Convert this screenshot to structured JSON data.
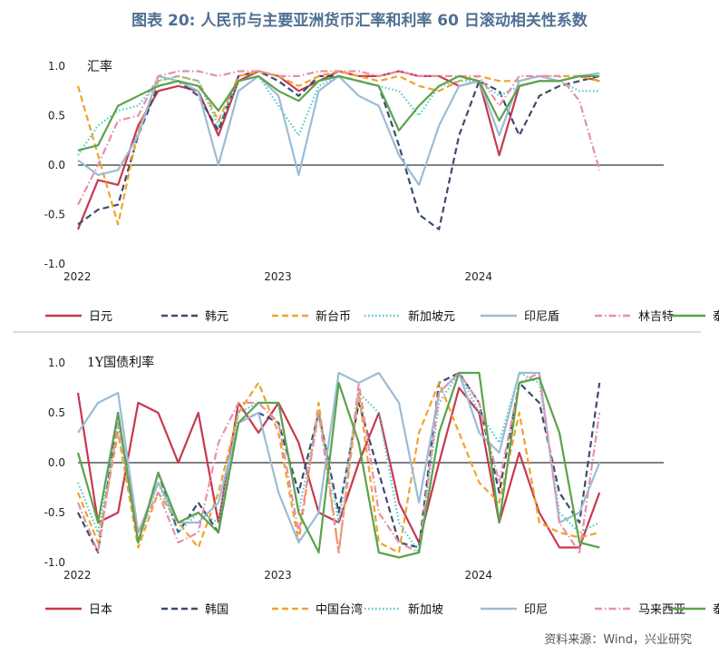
{
  "figure_title": "图表 20: 人民币与主要亚洲货币汇率和利率 60 日滚动相关性系数",
  "source": "资料来源：Wind，兴业研究",
  "chart_data": [
    {
      "type": "line",
      "title": "汇率",
      "x_ticks": [
        "2022",
        "2023",
        "2024"
      ],
      "x_range": [
        "2022-01",
        "2024-12"
      ],
      "ylim": [
        -1.0,
        1.0
      ],
      "y_ticks": [
        "1.0",
        "0.5",
        "0.0",
        "-0.5",
        "-1.0"
      ],
      "x": [
        2022.0,
        2022.1,
        2022.2,
        2022.3,
        2022.4,
        2022.5,
        2022.6,
        2022.7,
        2022.8,
        2022.9,
        2023.0,
        2023.1,
        2023.2,
        2023.3,
        2023.4,
        2023.5,
        2023.6,
        2023.7,
        2023.8,
        2023.9,
        2024.0,
        2024.1,
        2024.2,
        2024.3,
        2024.4,
        2024.5,
        2024.6
      ],
      "series": [
        {
          "name": "日元",
          "color": "#c8384e",
          "dash": "solid",
          "values": [
            -0.65,
            -0.15,
            -0.2,
            0.4,
            0.75,
            0.8,
            0.75,
            0.3,
            0.85,
            0.95,
            0.9,
            0.75,
            0.85,
            0.95,
            0.9,
            0.9,
            0.95,
            0.9,
            0.9,
            0.8,
            0.85,
            0.1,
            0.8,
            0.85,
            0.85,
            0.9,
            0.85
          ]
        },
        {
          "name": "韩元",
          "color": "#3d4c6e",
          "dash": "dashed",
          "values": [
            -0.6,
            -0.45,
            -0.4,
            0.3,
            0.8,
            0.85,
            0.7,
            0.35,
            0.9,
            0.95,
            0.85,
            0.7,
            0.9,
            0.9,
            0.85,
            0.8,
            0.2,
            -0.5,
            -0.65,
            0.3,
            0.85,
            0.75,
            0.3,
            0.7,
            0.8,
            0.85,
            0.9
          ]
        },
        {
          "name": "新台币",
          "color": "#f0a32a",
          "dash": "dashed",
          "values": [
            0.8,
            0.1,
            -0.6,
            0.35,
            0.85,
            0.9,
            0.85,
            0.45,
            0.9,
            0.95,
            0.9,
            0.8,
            0.9,
            0.95,
            0.9,
            0.85,
            0.9,
            0.8,
            0.75,
            0.85,
            0.9,
            0.85,
            0.85,
            0.9,
            0.9,
            0.9,
            0.85
          ]
        },
        {
          "name": "新加坡元",
          "color": "#4ec9c9",
          "dash": "dotted",
          "values": [
            0.1,
            0.4,
            0.55,
            0.6,
            0.85,
            0.9,
            0.85,
            0.4,
            0.85,
            0.9,
            0.6,
            0.3,
            0.8,
            0.9,
            0.85,
            0.8,
            0.75,
            0.5,
            0.8,
            0.85,
            0.85,
            0.7,
            0.8,
            0.85,
            0.85,
            0.75,
            0.75
          ]
        },
        {
          "name": "印尼盾",
          "color": "#9bbcd6",
          "dash": "solid",
          "values": [
            0.05,
            -0.1,
            -0.05,
            0.3,
            0.9,
            0.85,
            0.75,
            0.0,
            0.75,
            0.9,
            0.7,
            -0.1,
            0.75,
            0.9,
            0.7,
            0.6,
            0.1,
            -0.2,
            0.4,
            0.8,
            0.85,
            0.3,
            0.85,
            0.9,
            0.85,
            0.9,
            0.93
          ]
        },
        {
          "name": "林吉特",
          "color": "#e88fa8",
          "dash": "dashdot",
          "values": [
            -0.4,
            0.0,
            0.45,
            0.5,
            0.9,
            0.95,
            0.95,
            0.9,
            0.95,
            0.95,
            0.9,
            0.9,
            0.95,
            0.95,
            0.95,
            0.9,
            0.95,
            0.9,
            0.9,
            0.9,
            0.9,
            0.6,
            0.9,
            0.9,
            0.9,
            0.65,
            -0.05
          ]
        },
        {
          "name": "泰铢",
          "color": "#5aa34a",
          "dash": "solid",
          "values": [
            0.15,
            0.2,
            0.6,
            0.7,
            0.8,
            0.85,
            0.8,
            0.55,
            0.85,
            0.9,
            0.75,
            0.65,
            0.85,
            0.9,
            0.85,
            0.8,
            0.35,
            0.6,
            0.8,
            0.9,
            0.85,
            0.45,
            0.8,
            0.85,
            0.85,
            0.9,
            0.9
          ]
        }
      ]
    },
    {
      "type": "line",
      "title": "1Y国债利率",
      "x_ticks": [
        "2022",
        "2023",
        "2024"
      ],
      "x_range": [
        "2022-01",
        "2024-12"
      ],
      "ylim": [
        -1.0,
        1.0
      ],
      "y_ticks": [
        "1.0",
        "0.5",
        "0.0",
        "-0.5",
        "-1.0"
      ],
      "x": [
        2022.0,
        2022.1,
        2022.2,
        2022.3,
        2022.4,
        2022.5,
        2022.6,
        2022.7,
        2022.8,
        2022.9,
        2023.0,
        2023.1,
        2023.2,
        2023.3,
        2023.4,
        2023.5,
        2023.6,
        2023.7,
        2023.8,
        2023.9,
        2024.0,
        2024.1,
        2024.2,
        2024.3,
        2024.4,
        2024.5,
        2024.6
      ],
      "series": [
        {
          "name": "日本",
          "color": "#c8384e",
          "dash": "solid",
          "values": [
            0.7,
            -0.6,
            -0.5,
            0.6,
            0.5,
            0.0,
            0.5,
            -0.6,
            0.6,
            0.3,
            0.6,
            0.2,
            -0.5,
            -0.6,
            0.0,
            0.5,
            -0.4,
            -0.8,
            0.0,
            0.75,
            0.5,
            -0.6,
            0.1,
            -0.5,
            -0.85,
            -0.85,
            -0.3
          ]
        },
        {
          "name": "韩国",
          "color": "#3d4c6e",
          "dash": "dashed",
          "values": [
            -0.5,
            -0.9,
            0.5,
            -0.8,
            -0.1,
            -0.7,
            -0.4,
            -0.7,
            0.4,
            0.5,
            0.4,
            -0.3,
            0.5,
            -0.5,
            0.6,
            -0.1,
            -0.8,
            -0.85,
            0.8,
            0.9,
            0.6,
            -0.3,
            0.8,
            0.6,
            -0.3,
            -0.6,
            0.8
          ]
        },
        {
          "name": "中国台湾",
          "color": "#f0a32a",
          "dash": "dashed",
          "values": [
            -0.3,
            -0.8,
            0.3,
            -0.85,
            -0.3,
            -0.6,
            -0.85,
            -0.3,
            0.5,
            0.8,
            0.3,
            -0.8,
            0.6,
            -0.9,
            0.7,
            -0.8,
            -0.9,
            0.3,
            0.8,
            0.3,
            -0.2,
            -0.4,
            0.5,
            -0.6,
            -0.7,
            -0.75,
            -0.7
          ]
        },
        {
          "name": "新加坡",
          "color": "#4ec9c9",
          "dash": "dotted",
          "values": [
            -0.2,
            -0.7,
            0.4,
            -0.8,
            -0.2,
            -0.7,
            -0.5,
            -0.6,
            0.5,
            0.6,
            0.6,
            -0.5,
            0.5,
            -0.6,
            0.7,
            0.5,
            -0.6,
            -0.9,
            0.6,
            0.9,
            0.5,
            0.2,
            0.9,
            0.8,
            -0.5,
            -0.7,
            -0.6
          ]
        },
        {
          "name": "印尼",
          "color": "#9bbcd6",
          "dash": "solid",
          "values": [
            0.3,
            0.6,
            0.7,
            -0.7,
            -0.2,
            -0.6,
            -0.6,
            -0.4,
            0.4,
            0.5,
            -0.3,
            -0.8,
            -0.5,
            0.9,
            0.8,
            0.9,
            0.6,
            -0.4,
            0.7,
            0.9,
            0.3,
            0.1,
            0.9,
            0.9,
            -0.6,
            -0.5,
            0.0
          ]
        },
        {
          "name": "马来西亚",
          "color": "#e88fa8",
          "dash": "dashdot",
          "values": [
            -0.4,
            -0.9,
            0.4,
            -0.7,
            -0.3,
            -0.8,
            -0.7,
            0.2,
            0.6,
            0.6,
            0.4,
            -0.7,
            0.5,
            -0.9,
            0.8,
            -0.5,
            -0.8,
            -0.9,
            0.7,
            0.9,
            0.6,
            -0.2,
            0.8,
            0.9,
            -0.6,
            -0.9,
            0.5
          ]
        },
        {
          "name": "泰国",
          "color": "#5aa34a",
          "dash": "solid",
          "values": [
            0.1,
            -0.6,
            0.5,
            -0.8,
            -0.1,
            -0.6,
            -0.5,
            -0.7,
            0.4,
            0.6,
            0.6,
            -0.5,
            -0.9,
            0.8,
            0.2,
            -0.9,
            -0.95,
            -0.9,
            0.3,
            0.9,
            0.9,
            -0.6,
            0.8,
            0.85,
            0.3,
            -0.8,
            -0.85
          ]
        }
      ]
    }
  ]
}
